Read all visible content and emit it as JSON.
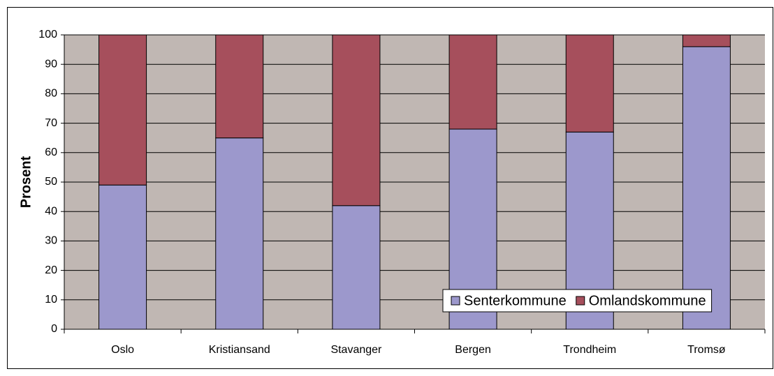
{
  "chart_data": {
    "type": "stacked_bar",
    "categories": [
      "Oslo",
      "Kristiansand",
      "Stavanger",
      "Bergen",
      "Trondheim",
      "Tromsø"
    ],
    "series": [
      {
        "name": "Senterkommune",
        "color": "#9c98cc",
        "values": [
          49,
          65,
          42,
          68,
          67,
          96
        ]
      },
      {
        "name": "Omlandskommune",
        "color": "#a64f5c",
        "values": [
          51,
          35,
          58,
          32,
          33,
          4
        ]
      }
    ],
    "y_label": "Prosent",
    "ylim": [
      0,
      100
    ],
    "yticks": [
      0,
      10,
      20,
      30,
      40,
      50,
      60,
      70,
      80,
      90,
      100
    ],
    "grid": true,
    "legend": "lower right"
  }
}
